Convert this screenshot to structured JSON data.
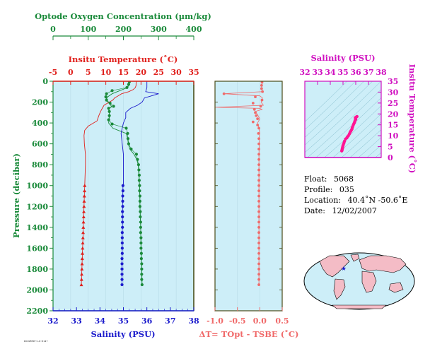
{
  "colors": {
    "oxygen": "#1a8a3a",
    "temperature": "#e0201c",
    "salinity": "#1a1acc",
    "delta": "#f06a6a",
    "salinity_axis": "#d010c0",
    "panel_bg": "#cdeef8",
    "frame_dark": "#4a4a18"
  },
  "info": {
    "float_label": "Float:",
    "float_value": "5068",
    "profile_label": "Profile:",
    "profile_value": "035",
    "location_label": "Location:",
    "location_value": "40.4˚N  -50.6˚E",
    "date_label": "Date:",
    "date_value": "12/02/2007"
  },
  "stamp": "DOCUMENT:LO:0127",
  "map": {
    "marker_symbol": "★",
    "marker_lat": 40.4,
    "marker_lon": -50.6
  },
  "chart_data": [
    {
      "type": "line",
      "ylabel": "Pressure (decibar)",
      "ylim": [
        2200,
        0
      ],
      "yticks": [
        0,
        200,
        400,
        600,
        800,
        1000,
        1200,
        1400,
        1600,
        1800,
        2000,
        2200
      ],
      "axes": {
        "oxygen": {
          "label": "Optode Oxygen Concentration (µm/kg)",
          "lim": [
            0,
            400
          ],
          "ticks": [
            0,
            100,
            200,
            300,
            400
          ]
        },
        "temperature": {
          "label": "Insitu Temperature (˚C)",
          "lim": [
            -5,
            35
          ],
          "ticks": [
            -5,
            0,
            5,
            10,
            15,
            20,
            25,
            30,
            35
          ]
        },
        "salinity": {
          "label": "Salinity (PSU)",
          "lim": [
            32,
            38
          ],
          "ticks": [
            32,
            33,
            34,
            35,
            36,
            37,
            38
          ]
        }
      },
      "series": [
        {
          "key": "oxygen_points",
          "axis": "oxygen",
          "p": [
            5,
            30,
            60,
            90,
            120,
            150,
            180,
            210,
            240,
            260,
            290,
            330,
            370,
            410,
            450,
            500,
            550,
            600,
            650,
            700,
            750,
            800,
            850,
            900,
            950,
            1000,
            1050,
            1100,
            1150,
            1200,
            1250,
            1300,
            1350,
            1400,
            1450,
            1500,
            1550,
            1600,
            1650,
            1700,
            1750,
            1800,
            1850,
            1900,
            1950
          ],
          "v": [
            217,
            215,
            210,
            168,
            152,
            150,
            152,
            162,
            172,
            158,
            160,
            160,
            158,
            168,
            208,
            212,
            213,
            215,
            222,
            237,
            240,
            243,
            244,
            245,
            245,
            246,
            246,
            247,
            247,
            247,
            248,
            248,
            249,
            249,
            249,
            250,
            250,
            250,
            251,
            251,
            252,
            252,
            252,
            252,
            253
          ]
        },
        {
          "key": "oxygen_line",
          "axis": "oxygen",
          "p": [
            0,
            30,
            60,
            90,
            120,
            150,
            180,
            210,
            240,
            270,
            300,
            350,
            400,
            450,
            500,
            550,
            600,
            650,
            700,
            750,
            800,
            900,
            1000,
            1200,
            1400,
            1600,
            1800,
            1950
          ],
          "v": [
            217,
            216,
            212,
            190,
            168,
            155,
            150,
            160,
            166,
            158,
            160,
            160,
            158,
            170,
            208,
            212,
            214,
            218,
            230,
            238,
            242,
            244,
            246,
            247,
            249,
            250,
            252,
            253
          ]
        },
        {
          "key": "temperature_line",
          "axis": "temperature",
          "p": [
            0,
            20,
            40,
            60,
            80,
            100,
            120,
            140,
            160,
            180,
            200,
            230,
            260,
            290,
            330,
            380,
            410,
            430,
            470,
            520,
            600,
            700,
            800,
            900,
            1000
          ],
          "v": [
            18.7,
            18.6,
            18.6,
            18.4,
            17.8,
            16.5,
            14.5,
            13.5,
            12.5,
            12.0,
            11.0,
            9.5,
            9.0,
            8.5,
            8.0,
            7.5,
            6.0,
            5.0,
            4.0,
            3.8,
            3.9,
            4.2,
            4.2,
            4.1,
            4.0
          ]
        },
        {
          "key": "temperature_points",
          "axis": "temperature",
          "p": [
            1000,
            1050,
            1100,
            1150,
            1200,
            1250,
            1300,
            1350,
            1400,
            1450,
            1500,
            1550,
            1600,
            1650,
            1700,
            1750,
            1800,
            1850,
            1900,
            1950
          ],
          "v": [
            4.0,
            3.95,
            3.9,
            3.85,
            3.8,
            3.75,
            3.7,
            3.65,
            3.6,
            3.55,
            3.5,
            3.45,
            3.4,
            3.35,
            3.3,
            3.25,
            3.2,
            3.15,
            3.1,
            3.05
          ]
        },
        {
          "key": "salinity_line",
          "axis": "salinity",
          "p": [
            0,
            60,
            100,
            120,
            140,
            160,
            200,
            230,
            260,
            300,
            350,
            400,
            450,
            500,
            600,
            700,
            800,
            900,
            1000
          ],
          "v": [
            36.0,
            36.0,
            35.95,
            36.5,
            36.2,
            35.9,
            35.8,
            35.6,
            35.3,
            35.1,
            35.1,
            35.0,
            34.95,
            34.9,
            34.95,
            35.0,
            35.0,
            35.0,
            35.0
          ]
        },
        {
          "key": "salinity_points",
          "axis": "salinity",
          "p": [
            1000,
            1050,
            1100,
            1150,
            1200,
            1250,
            1300,
            1350,
            1400,
            1450,
            1500,
            1550,
            1600,
            1650,
            1700,
            1750,
            1800,
            1850,
            1900,
            1950
          ],
          "v": [
            34.98,
            34.98,
            34.97,
            34.97,
            34.97,
            34.96,
            34.96,
            34.96,
            34.96,
            34.95,
            34.95,
            34.95,
            34.95,
            34.95,
            34.94,
            34.94,
            34.94,
            34.94,
            34.94,
            34.94
          ]
        }
      ]
    },
    {
      "type": "scatter",
      "xlabel": "ΔT= TOpt - TSBE (˚C)",
      "xlim": [
        -1.0,
        0.5
      ],
      "xticks": [
        -1.0,
        -0.5,
        0.0,
        0.5
      ],
      "ylim": [
        2200,
        0
      ],
      "line": {
        "p": [
          0,
          20,
          60,
          100,
          120,
          140,
          160,
          200,
          230,
          250,
          260,
          270,
          290,
          320,
          360,
          400,
          450,
          500,
          550,
          600,
          700,
          800,
          900,
          1000,
          1200,
          1400,
          1600,
          1800,
          1950
        ],
        "v": [
          0.05,
          0.05,
          0.04,
          0.06,
          -0.8,
          0.0,
          0.06,
          0.03,
          0.08,
          -1.0,
          0.0,
          0.05,
          -0.1,
          -0.05,
          0.0,
          -0.05,
          -0.02,
          0.0,
          -0.02,
          -0.01,
          -0.02,
          -0.02,
          -0.02,
          -0.02,
          -0.02,
          -0.02,
          -0.02,
          -0.02,
          -0.02
        ]
      },
      "points": {
        "p": [
          10,
          40,
          70,
          100,
          120,
          150,
          180,
          210,
          240,
          270,
          300,
          330,
          360,
          390,
          420,
          450,
          500,
          550,
          600,
          650,
          700,
          750,
          800,
          850,
          900,
          950,
          1000,
          1050,
          1100,
          1150,
          1200,
          1250,
          1300,
          1350,
          1400,
          1450,
          1500,
          1550,
          1600,
          1650,
          1700,
          1750,
          1800,
          1850,
          1900,
          1950
        ],
        "v": [
          0.05,
          0.04,
          0.04,
          0.06,
          -0.8,
          -0.1,
          0.05,
          -0.15,
          0.02,
          -0.12,
          -0.1,
          -0.08,
          -0.05,
          -0.15,
          -0.05,
          -0.02,
          -0.03,
          -0.02,
          -0.02,
          -0.02,
          -0.02,
          -0.02,
          -0.02,
          -0.02,
          -0.02,
          -0.02,
          -0.02,
          -0.02,
          -0.02,
          -0.02,
          -0.02,
          -0.02,
          -0.02,
          -0.02,
          -0.02,
          -0.02,
          -0.02,
          -0.02,
          -0.02,
          -0.02,
          -0.02,
          -0.02,
          -0.02,
          -0.02,
          -0.02,
          -0.02
        ]
      }
    },
    {
      "type": "scatter",
      "xlabel": "Salinity (PSU)",
      "ylabel": "Insitu Temperature (˚C)",
      "xlim": [
        32,
        38
      ],
      "ylim": [
        0,
        35
      ],
      "xticks": [
        32,
        33,
        34,
        35,
        36,
        37,
        38
      ],
      "yticks": [
        0,
        5,
        10,
        15,
        20,
        25,
        30,
        35
      ],
      "points": {
        "s": [
          34.9,
          34.92,
          34.93,
          34.94,
          34.95,
          34.96,
          34.97,
          34.98,
          35.0,
          35.03,
          35.08,
          35.12,
          35.2,
          35.3,
          35.35,
          35.42,
          35.5,
          35.55,
          35.6,
          35.65,
          35.7,
          35.72,
          35.75,
          35.8,
          35.85,
          35.9,
          35.92,
          35.95,
          36.0,
          35.98,
          35.97,
          36.05,
          36.1
        ],
        "t": [
          3.0,
          3.3,
          3.6,
          3.9,
          4.1,
          4.3,
          4.6,
          5.0,
          5.5,
          6.0,
          6.8,
          7.5,
          8.5,
          9.0,
          9.5,
          10.0,
          10.8,
          11.5,
          12.0,
          12.5,
          13.0,
          13.6,
          14.0,
          14.8,
          15.5,
          16.0,
          16.5,
          17.0,
          17.5,
          18.0,
          18.3,
          18.6,
          18.8
        ]
      }
    }
  ]
}
